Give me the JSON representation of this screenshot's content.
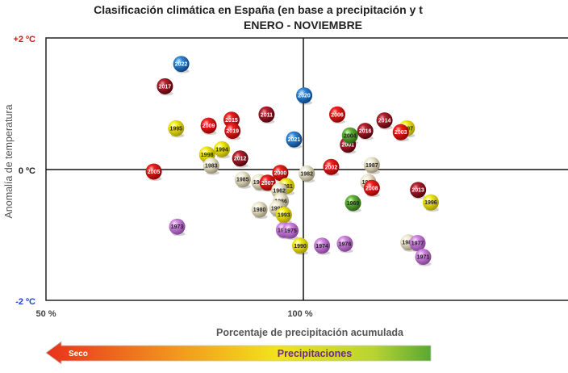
{
  "chart_data": {
    "type": "scatter",
    "title": "Clasificación climática en España (en base a precipitación y t",
    "subtitle": "ENERO - NOVIEMBRE",
    "xlabel": "Porcentaje de precipitación acumulada",
    "ylabel": "Anomalía de temperatura",
    "xlim": [
      50,
      150
    ],
    "ylim": [
      -2,
      2
    ],
    "x_ticks": [
      {
        "value": 50,
        "label": "50 %"
      },
      {
        "value": 100,
        "label": "100 %"
      }
    ],
    "y_ticks": [
      {
        "value": 2,
        "label": "+2 ºC",
        "color": "#e01010"
      },
      {
        "value": 0,
        "label": "0 ºC",
        "color": "#222222"
      },
      {
        "value": -2,
        "label": "-2 ºC",
        "color": "#2040d0"
      }
    ],
    "bar_labels": {
      "left": "Seco",
      "center": "Precipitaciones"
    },
    "colors": {
      "darkred": "#8b0d1a",
      "red": "#e01818",
      "yellow": "#e8dc00",
      "cream": "#e9e2c4",
      "violet": "#c77ad6",
      "green": "#5aa832",
      "blue": "#1f78c8"
    },
    "points": [
      {
        "year": "2022",
        "x": 76.6,
        "y": 1.61,
        "c": "blue"
      },
      {
        "year": "2017",
        "x": 73.4,
        "y": 1.27,
        "c": "darkred"
      },
      {
        "year": "2020",
        "x": 100.8,
        "y": 1.13,
        "c": "blue"
      },
      {
        "year": "2011",
        "x": 93.4,
        "y": 0.84,
        "c": "darkred"
      },
      {
        "year": "2006",
        "x": 107.3,
        "y": 0.84,
        "c": "red"
      },
      {
        "year": "2014",
        "x": 116.6,
        "y": 0.75,
        "c": "darkred"
      },
      {
        "year": "2015",
        "x": 86.5,
        "y": 0.76,
        "c": "red"
      },
      {
        "year": "1995",
        "x": 75.6,
        "y": 0.63,
        "c": "yellow"
      },
      {
        "year": "2009",
        "x": 82.0,
        "y": 0.67,
        "c": "red"
      },
      {
        "year": "2019",
        "x": 86.7,
        "y": 0.59,
        "c": "red"
      },
      {
        "year": "2016",
        "x": 112.8,
        "y": 0.59,
        "c": "darkred"
      },
      {
        "year": "1997",
        "x": 121.0,
        "y": 0.63,
        "c": "yellow"
      },
      {
        "year": "2003",
        "x": 119.8,
        "y": 0.57,
        "c": "red"
      },
      {
        "year": "2021",
        "x": 98.8,
        "y": 0.46,
        "c": "blue"
      },
      {
        "year": "2001",
        "x": 109.4,
        "y": 0.38,
        "c": "darkred"
      },
      {
        "year": "2004",
        "x": 109.8,
        "y": 0.52,
        "c": "green"
      },
      {
        "year": "1994",
        "x": 84.6,
        "y": 0.31,
        "c": "yellow"
      },
      {
        "year": "1998",
        "x": 81.7,
        "y": 0.23,
        "c": "yellow"
      },
      {
        "year": "2012",
        "x": 88.2,
        "y": 0.17,
        "c": "darkred"
      },
      {
        "year": "1983",
        "x": 82.5,
        "y": 0.06,
        "c": "cream"
      },
      {
        "year": "1987",
        "x": 114.1,
        "y": 0.07,
        "c": "cream"
      },
      {
        "year": "2002",
        "x": 106.1,
        "y": 0.04,
        "c": "red"
      },
      {
        "year": "2005",
        "x": 71.2,
        "y": -0.03,
        "c": "red"
      },
      {
        "year": "1982",
        "x": 101.3,
        "y": -0.06,
        "c": "cream"
      },
      {
        "year": "2000",
        "x": 96.1,
        "y": -0.05,
        "c": "red"
      },
      {
        "year": "1985",
        "x": 88.7,
        "y": -0.15,
        "c": "cream"
      },
      {
        "year": "1992",
        "x": 92.0,
        "y": -0.19,
        "c": "cream"
      },
      {
        "year": "2007",
        "x": 93.6,
        "y": -0.2,
        "c": "red"
      },
      {
        "year": "1981",
        "x": 97.3,
        "y": -0.25,
        "c": "yellow"
      },
      {
        "year": "1962",
        "x": 95.9,
        "y": -0.32,
        "c": "cream"
      },
      {
        "year": "1984",
        "x": 113.4,
        "y": -0.19,
        "c": "cream"
      },
      {
        "year": "2008",
        "x": 114.1,
        "y": -0.28,
        "c": "red"
      },
      {
        "year": "2013",
        "x": 123.2,
        "y": -0.31,
        "c": "darkred"
      },
      {
        "year": "1986",
        "x": 96.2,
        "y": -0.48,
        "c": "cream"
      },
      {
        "year": "1969",
        "x": 110.4,
        "y": -0.51,
        "c": "green"
      },
      {
        "year": "1996",
        "x": 125.7,
        "y": -0.5,
        "c": "yellow"
      },
      {
        "year": "1980",
        "x": 92.0,
        "y": -0.61,
        "c": "cream"
      },
      {
        "year": "1991",
        "x": 95.5,
        "y": -0.59,
        "c": "cream"
      },
      {
        "year": "1993",
        "x": 96.8,
        "y": -0.69,
        "c": "yellow"
      },
      {
        "year": "1973",
        "x": 75.8,
        "y": -0.87,
        "c": "violet"
      },
      {
        "year": "1978",
        "x": 96.8,
        "y": -0.92,
        "c": "violet"
      },
      {
        "year": "1975",
        "x": 98.1,
        "y": -0.93,
        "c": "violet"
      },
      {
        "year": "1990",
        "x": 100.0,
        "y": -1.16,
        "c": "yellow"
      },
      {
        "year": "1974",
        "x": 104.3,
        "y": -1.16,
        "c": "violet"
      },
      {
        "year": "1976",
        "x": 108.8,
        "y": -1.13,
        "c": "violet"
      },
      {
        "year": "1989",
        "x": 121.3,
        "y": -1.11,
        "c": "cream"
      },
      {
        "year": "1977",
        "x": 123.1,
        "y": -1.12,
        "c": "violet"
      },
      {
        "year": "1971",
        "x": 124.2,
        "y": -1.33,
        "c": "violet"
      }
    ]
  }
}
